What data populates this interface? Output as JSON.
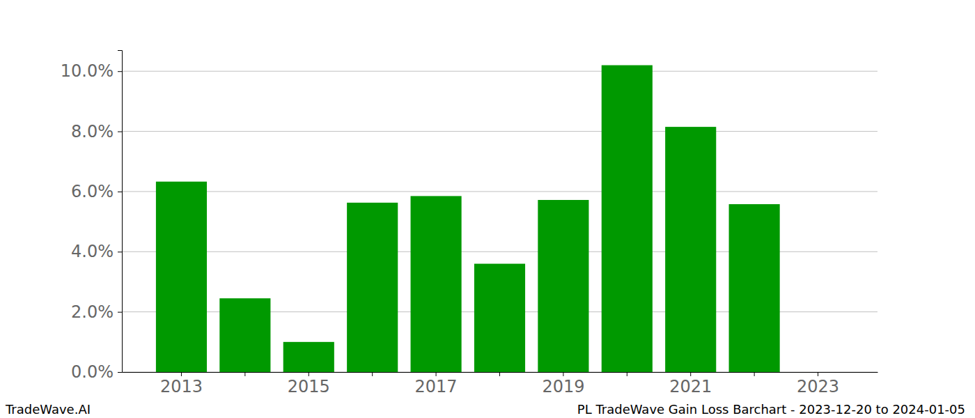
{
  "chart_data": {
    "type": "bar",
    "title": "PL TradeWave Gain Loss Barchart - 2023-12-20 to 2024-01-05",
    "annotations": [
      "TradeWave.AI"
    ],
    "categories": [
      "2013",
      null,
      "2015",
      null,
      "2017",
      null,
      "2019",
      null,
      "2021",
      null,
      "2023"
    ],
    "values": [
      6.33,
      2.45,
      1.0,
      5.63,
      5.85,
      3.6,
      5.72,
      10.2,
      8.15,
      5.58,
      null
    ],
    "color": "#009900",
    "ylim": [
      0,
      10.7
    ],
    "yticks": [
      {
        "value": 0,
        "label": "0.0%"
      },
      {
        "value": 2,
        "label": "2.0%"
      },
      {
        "value": 4,
        "label": "4.0%"
      },
      {
        "value": 6,
        "label": "6.0%"
      },
      {
        "value": 8,
        "label": "8.0%"
      },
      {
        "value": 10,
        "label": "10.0%"
      }
    ],
    "grid": true
  }
}
